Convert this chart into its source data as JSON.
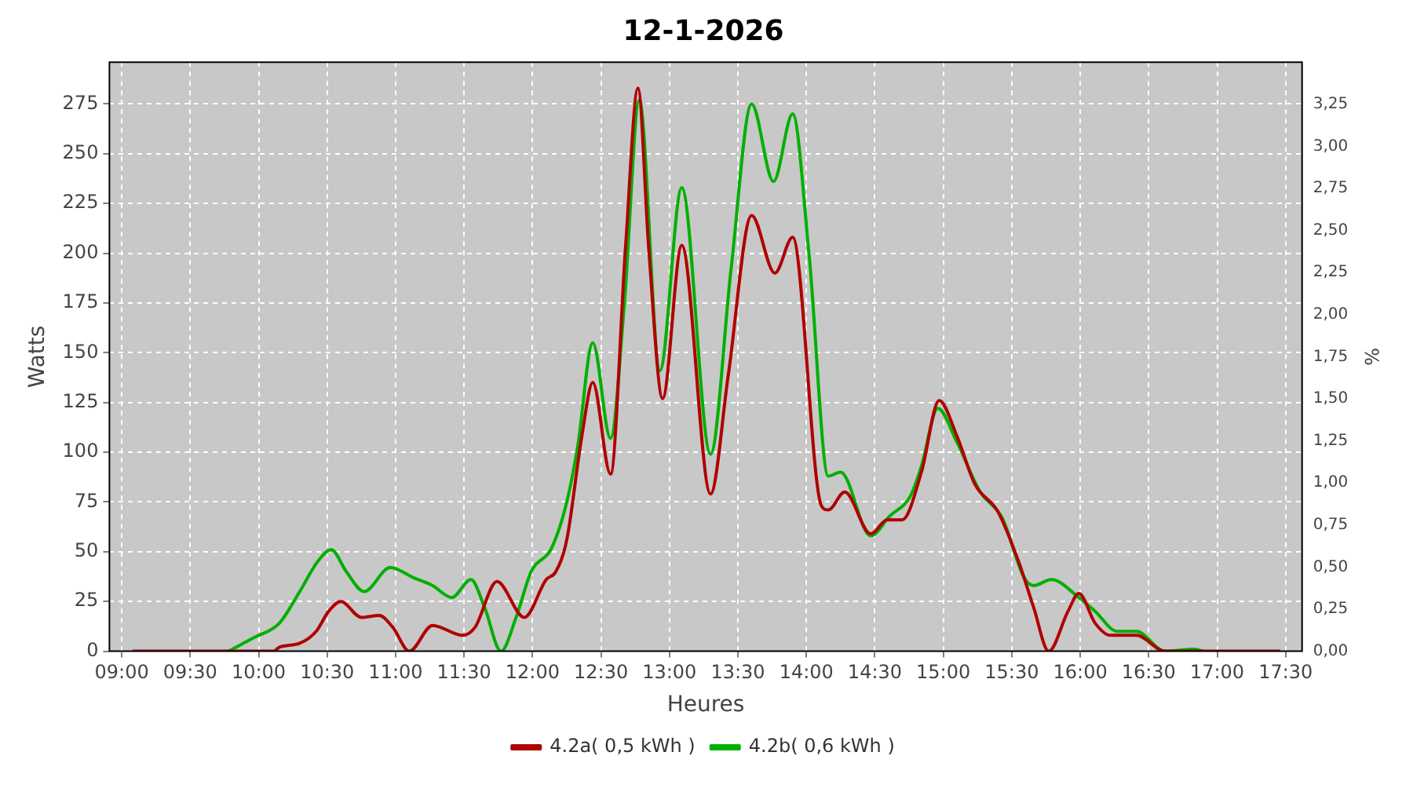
{
  "chart_data": {
    "type": "line",
    "title": "12-1-2026",
    "xlabel": "Heures",
    "ylabel": "Watts",
    "y2label": "%",
    "xlim": [
      8.91,
      17.62
    ],
    "xticks": [
      {
        "value": 9,
        "label": "09:00"
      },
      {
        "value": 9.5,
        "label": "09:30"
      },
      {
        "value": 10,
        "label": "10:00"
      },
      {
        "value": 10.5,
        "label": "10:30"
      },
      {
        "value": 11,
        "label": "11:00"
      },
      {
        "value": 11.5,
        "label": "11:30"
      },
      {
        "value": 12,
        "label": "12:00"
      },
      {
        "value": 12.5,
        "label": "12:30"
      },
      {
        "value": 13,
        "label": "13:00"
      },
      {
        "value": 13.5,
        "label": "13:30"
      },
      {
        "value": 14,
        "label": "14:00"
      },
      {
        "value": 14.5,
        "label": "14:30"
      },
      {
        "value": 15,
        "label": "15:00"
      },
      {
        "value": 15.5,
        "label": "15:30"
      },
      {
        "value": 16,
        "label": "16:00"
      },
      {
        "value": 16.5,
        "label": "16:30"
      },
      {
        "value": 17,
        "label": "17:00"
      },
      {
        "value": 17.5,
        "label": "17:30"
      }
    ],
    "ylim": [
      0,
      296
    ],
    "yticks": [
      0,
      25,
      50,
      75,
      100,
      125,
      150,
      175,
      200,
      225,
      250,
      275
    ],
    "y2lim": [
      0,
      3.5
    ],
    "y2ticks": [
      {
        "value": 0,
        "label": "0,00"
      },
      {
        "value": 0.25,
        "label": "0,25"
      },
      {
        "value": 0.5,
        "label": "0,50"
      },
      {
        "value": 0.75,
        "label": "0,75"
      },
      {
        "value": 1,
        "label": "1,00"
      },
      {
        "value": 1.25,
        "label": "1,25"
      },
      {
        "value": 1.5,
        "label": "1,50"
      },
      {
        "value": 1.75,
        "label": "1,75"
      },
      {
        "value": 2,
        "label": "2,00"
      },
      {
        "value": 2.25,
        "label": "2,25"
      },
      {
        "value": 2.5,
        "label": "2,50"
      },
      {
        "value": 2.75,
        "label": "2,75"
      },
      {
        "value": 3,
        "label": "3,00"
      },
      {
        "value": 3.25,
        "label": "3,25"
      }
    ],
    "grid": true,
    "legend": "bottom",
    "marker": "none",
    "line_style": "solid",
    "series": [
      {
        "name": "4.2a( 0,5 kWh )",
        "color": "#b00000",
        "x": [
          9.08,
          10.11,
          10.15,
          10.3,
          10.42,
          10.51,
          10.6,
          10.75,
          10.88,
          10.98,
          11.1,
          11.27,
          11.49,
          11.58,
          11.74,
          11.94,
          12.1,
          12.17,
          12.25,
          12.36,
          12.44,
          12.57,
          12.68,
          12.77,
          12.85,
          12.95,
          13.09,
          13.3,
          13.43,
          13.6,
          13.77,
          13.9,
          14.11,
          14.16,
          14.28,
          14.47,
          14.59,
          14.7,
          14.84,
          14.97,
          15.1,
          15.23,
          15.4,
          15.55,
          15.66,
          15.77,
          15.91,
          15.99,
          16.11,
          16.22,
          16.41,
          16.62,
          17.46
        ],
        "values": [
          0,
          0,
          2,
          4,
          10,
          20,
          25,
          17,
          18,
          12,
          0,
          13,
          8,
          12,
          35,
          17,
          36,
          40,
          56,
          108,
          135,
          89,
          204,
          283,
          201,
          127,
          204,
          79,
          139,
          219,
          190,
          208,
          73,
          71,
          80,
          59,
          66,
          66,
          90,
          126,
          108,
          84,
          70,
          45,
          22,
          0,
          20,
          29,
          14,
          8,
          8,
          0,
          0
        ]
      },
      {
        "name": "4.2b( 0,6 kWh )",
        "color": "#00b000",
        "x": [
          9.78,
          9.97,
          10.15,
          10.3,
          10.43,
          10.53,
          10.64,
          10.77,
          10.96,
          11.13,
          11.27,
          11.41,
          11.55,
          11.65,
          11.77,
          11.88,
          11.99,
          12.14,
          12.25,
          12.33,
          12.44,
          12.57,
          12.67,
          12.78,
          12.93,
          13.09,
          13.3,
          13.45,
          13.6,
          13.76,
          13.9,
          14.02,
          14.16,
          14.25,
          14.47,
          14.61,
          14.76,
          14.84,
          14.96,
          15.1,
          15.27,
          15.43,
          15.59,
          15.66,
          15.79,
          15.99,
          16.11,
          16.27,
          16.41,
          16.62,
          16.83,
          16.9
        ],
        "values": [
          0,
          7,
          14,
          30,
          45,
          51,
          40,
          30,
          42,
          37,
          33,
          27,
          36,
          22,
          0,
          17,
          40,
          52,
          75,
          103,
          155,
          107,
          174,
          277,
          141,
          233,
          99,
          192,
          275,
          236,
          270,
          199,
          88,
          90,
          58,
          68,
          78,
          93,
          122,
          105,
          80,
          67,
          37,
          33,
          36,
          27,
          20,
          10,
          10,
          0,
          1,
          0
        ]
      }
    ]
  }
}
